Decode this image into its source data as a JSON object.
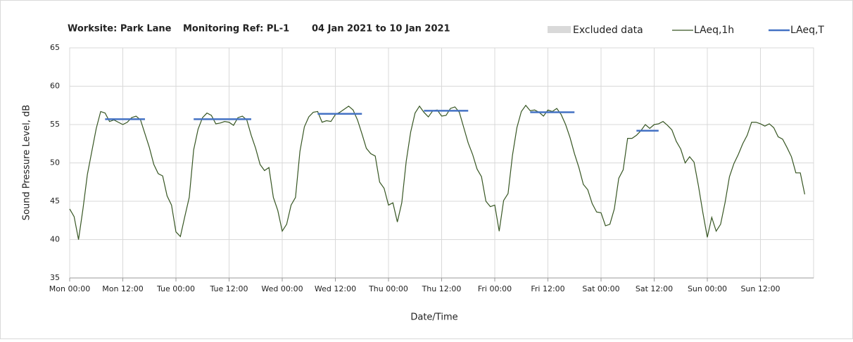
{
  "chart_data": {
    "type": "line",
    "title": [
      "Worksite: Park Lane",
      "Monitoring Ref: PL-1",
      "04 Jan 2021 to 10 Jan 2021"
    ],
    "xlabel": "Date/Time",
    "ylabel": "Sound Pressure Level, dB",
    "xlim": [
      0,
      168
    ],
    "ylim": [
      35,
      65
    ],
    "yticks": [
      35,
      40,
      45,
      50,
      55,
      60,
      65
    ],
    "xticks": [
      {
        "value": 0,
        "label": "Mon 00:00"
      },
      {
        "value": 12,
        "label": "Mon 12:00"
      },
      {
        "value": 24,
        "label": "Tue 00:00"
      },
      {
        "value": 36,
        "label": "Tue 12:00"
      },
      {
        "value": 48,
        "label": "Wed 00:00"
      },
      {
        "value": 60,
        "label": "Wed 12:00"
      },
      {
        "value": 72,
        "label": "Thu 00:00"
      },
      {
        "value": 84,
        "label": "Thu 12:00"
      },
      {
        "value": 96,
        "label": "Fri 00:00"
      },
      {
        "value": 108,
        "label": "Fri 12:00"
      },
      {
        "value": 120,
        "label": "Sat 00:00"
      },
      {
        "value": 132,
        "label": "Sat 12:00"
      },
      {
        "value": 144,
        "label": "Sun 00:00"
      },
      {
        "value": 156,
        "label": "Sun 12:00"
      }
    ],
    "grid": true,
    "excluded": {
      "name": "Excluded data",
      "color": "#d9d9d9"
    },
    "x": [
      0,
      1,
      2,
      3,
      4,
      5,
      6,
      7,
      8,
      9,
      10,
      11,
      12,
      13,
      14,
      15,
      16,
      17,
      18,
      19,
      20,
      21,
      22,
      23,
      24,
      25,
      26,
      27,
      28,
      29,
      30,
      31,
      32,
      33,
      34,
      35,
      36,
      37,
      38,
      39,
      40,
      41,
      42,
      43,
      44,
      45,
      46,
      47,
      48,
      49,
      50,
      51,
      52,
      53,
      54,
      55,
      56,
      57,
      58,
      59,
      60,
      61,
      62,
      63,
      64,
      65,
      66,
      67,
      68,
      69,
      70,
      71,
      72,
      73,
      74,
      75,
      76,
      77,
      78,
      79,
      80,
      81,
      82,
      83,
      84,
      85,
      86,
      87,
      88,
      89,
      90,
      91,
      92,
      93,
      94,
      95,
      96,
      97,
      98,
      99,
      100,
      101,
      102,
      103,
      104,
      105,
      106,
      107,
      108,
      109,
      110,
      111,
      112,
      113,
      114,
      115,
      116,
      117,
      118,
      119,
      120,
      121,
      122,
      123,
      124,
      125,
      126,
      127,
      128,
      129,
      130,
      131,
      132,
      133,
      134,
      135,
      136,
      137,
      138,
      139,
      140,
      141,
      142,
      143,
      144,
      145,
      146,
      147,
      148,
      149,
      150,
      151,
      152,
      153,
      154,
      155,
      156,
      157,
      158,
      159,
      160,
      161,
      162,
      163,
      164,
      165,
      166
    ],
    "series": [
      {
        "name": "LAeq,1h",
        "color": "#375623",
        "values": [
          44,
          43,
          40,
          44,
          48.5,
          51.5,
          54.5,
          56.7,
          56.5,
          55.4,
          55.6,
          55.3,
          55,
          55.3,
          55.9,
          56.1,
          55.6,
          53.8,
          52,
          49.8,
          48.6,
          48.3,
          45.7,
          44.5,
          41,
          40.4,
          43,
          45.5,
          51.7,
          54.4,
          55.9,
          56.5,
          56.2,
          55.1,
          55.2,
          55.4,
          55.3,
          54.9,
          55.9,
          56.1,
          55.6,
          53.6,
          51.9,
          49.8,
          49,
          49.4,
          45.5,
          43.8,
          41.1,
          42,
          44.5,
          45.5,
          51.5,
          54.7,
          56,
          56.6,
          56.7,
          55.3,
          55.5,
          55.4,
          56.3,
          56.6,
          57,
          57.4,
          56.9,
          55.6,
          53.8,
          51.9,
          51.2,
          50.9,
          47.5,
          46.7,
          44.5,
          44.8,
          42.3,
          44.8,
          50.2,
          54,
          56.5,
          57.4,
          56.6,
          56,
          56.8,
          56.9,
          56.1,
          56.2,
          57.1,
          57.3,
          56.6,
          54.6,
          52.6,
          51.1,
          49.2,
          48.2,
          45,
          44.3,
          44.5,
          41.1,
          45.1,
          46,
          51,
          54.6,
          56.7,
          57.5,
          56.8,
          56.9,
          56.6,
          56.1,
          56.9,
          56.7,
          57.1,
          56.3,
          55,
          53.3,
          51.2,
          49.4,
          47.2,
          46.5,
          44.7,
          43.6,
          43.5,
          41.8,
          42,
          44,
          48,
          49.1,
          53.2,
          53.2,
          53.6,
          54.2,
          55,
          54.5,
          55,
          55.1,
          55.4,
          54.9,
          54.3,
          52.8,
          51.8,
          50,
          50.8,
          50.1,
          47,
          43.5,
          40.3,
          42.9,
          41.1,
          42,
          44.8,
          48.2,
          49.9,
          51.1,
          52.5,
          53.6,
          55.3,
          55.3,
          55.1,
          54.8,
          55.1,
          54.6,
          53.4,
          53.1,
          52,
          50.8,
          48.7,
          48.7,
          45.9
        ]
      }
    ],
    "segments_name": "LAeq,T",
    "segments_color": "#4472c4",
    "segments": [
      {
        "start": 8,
        "end": 17,
        "value": 55.7
      },
      {
        "start": 28,
        "end": 41,
        "value": 55.7
      },
      {
        "start": 56,
        "end": 66,
        "value": 56.4
      },
      {
        "start": 80,
        "end": 90,
        "value": 56.8
      },
      {
        "start": 104,
        "end": 114,
        "value": 56.6
      },
      {
        "start": 128,
        "end": 133,
        "value": 54.2
      }
    ]
  }
}
